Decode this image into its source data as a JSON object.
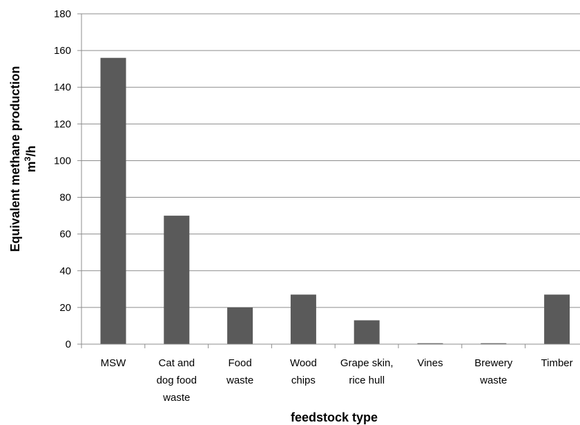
{
  "chart_data": {
    "type": "bar",
    "title": "",
    "xlabel": "feedstock type",
    "ylabel": "Equivalent methane production",
    "ylabel_unit": {
      "base": "m",
      "sup": "3",
      "rest": "/h"
    },
    "categories": [
      [
        "MSW"
      ],
      [
        "Cat and",
        "dog food",
        "waste"
      ],
      [
        "Food",
        "waste"
      ],
      [
        "Wood",
        "chips"
      ],
      [
        "Grape skin,",
        "rice  hull"
      ],
      [
        "Vines"
      ],
      [
        "Brewery",
        "waste"
      ],
      [
        "Timber"
      ]
    ],
    "values": [
      156,
      70,
      20,
      27,
      13,
      0.5,
      0.5,
      27
    ],
    "ylim": [
      0,
      180
    ],
    "yticks": [
      0,
      20,
      40,
      60,
      80,
      100,
      120,
      140,
      160,
      180
    ],
    "grid": true,
    "bar_color": "#5a5a5a",
    "grid_color": "#8c8c8c",
    "axis_color": "#8c8c8c"
  }
}
